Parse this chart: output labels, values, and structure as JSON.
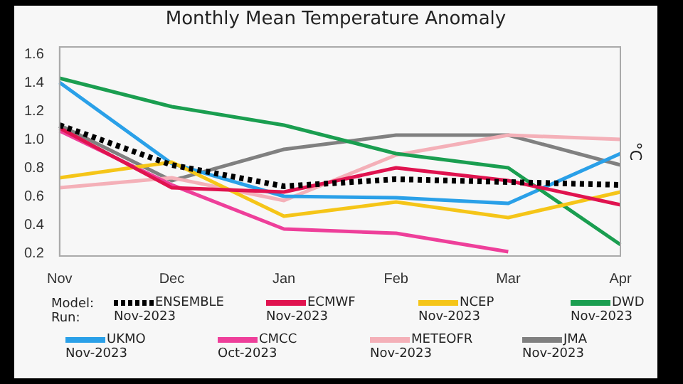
{
  "chart_data": {
    "type": "line",
    "title": "Monthly Mean Temperature Anomaly",
    "ylabel": "°C",
    "categories": [
      "Nov",
      "Dec",
      "Jan",
      "Feb",
      "Mar",
      "Apr"
    ],
    "ylim": [
      0.18,
      1.65
    ],
    "yticks": [
      0.2,
      0.4,
      0.6,
      0.8,
      {
        "value": 1,
        "label": "1.0"
      },
      1.2,
      1.4,
      1.6
    ],
    "grid": false,
    "legend": "bottom",
    "marker": "none",
    "annotations": [
      "Model:",
      "Run:"
    ],
    "series": [
      {
        "name": "ENSEMBLE\nNov-2023",
        "color": "#000000",
        "line_style": "dotted",
        "values": [
          1.1,
          0.82,
          0.67,
          0.72,
          0.7,
          0.68
        ]
      },
      {
        "name": "ECMWF\nNov-2023",
        "color": "#e0134f",
        "values": [
          1.08,
          0.66,
          0.63,
          0.8,
          0.71,
          0.54
        ]
      },
      {
        "name": "NCEP\nNov-2023",
        "color": "#f5c518",
        "values": [
          0.73,
          0.84,
          0.46,
          0.56,
          0.45,
          0.63
        ]
      },
      {
        "name": "DWD\nNov-2023",
        "color": "#1a9e50",
        "values": [
          1.43,
          1.23,
          1.1,
          0.9,
          0.8,
          0.26
        ]
      },
      {
        "name": "UKMO\nNov-2023",
        "color": "#2aa0e8",
        "values": [
          1.4,
          0.83,
          0.6,
          0.59,
          0.55,
          0.9
        ]
      },
      {
        "name": "CMCC\nOct-2023",
        "color": "#ee3f9a",
        "values": [
          1.06,
          0.68,
          0.37,
          0.34,
          0.21,
          null
        ]
      },
      {
        "name": "METEOFR\nNov-2023",
        "color": "#f4b0b8",
        "values": [
          0.66,
          0.73,
          0.57,
          0.89,
          1.03,
          1.0
        ]
      },
      {
        "name": "JMA\nNov-2023",
        "color": "#808080",
        "values": [
          1.1,
          0.71,
          0.93,
          1.03,
          1.03,
          0.82
        ]
      }
    ]
  }
}
